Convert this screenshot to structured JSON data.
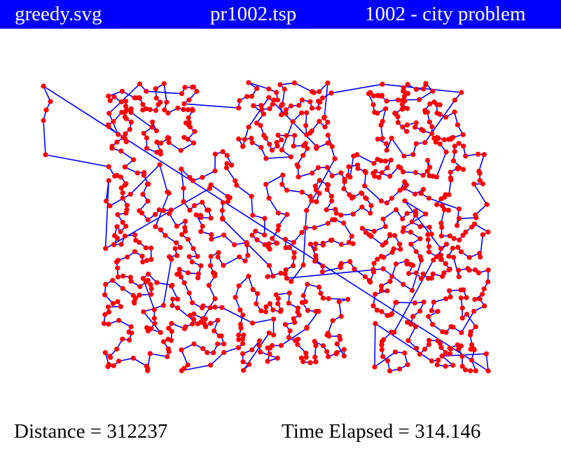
{
  "header": {
    "filename": "greedy.svg",
    "problem_file": "pr1002.tsp",
    "description": "1002 - city problem"
  },
  "footer": {
    "distance_label": "Distance = 312237",
    "time_label": "Time Elapsed = 314.146"
  },
  "colors": {
    "header_bg": "#0000ff",
    "header_text": "#ffffff",
    "edge": "#0000ff",
    "city": "#ff0000"
  },
  "plot": {
    "city_count": 1002
  }
}
